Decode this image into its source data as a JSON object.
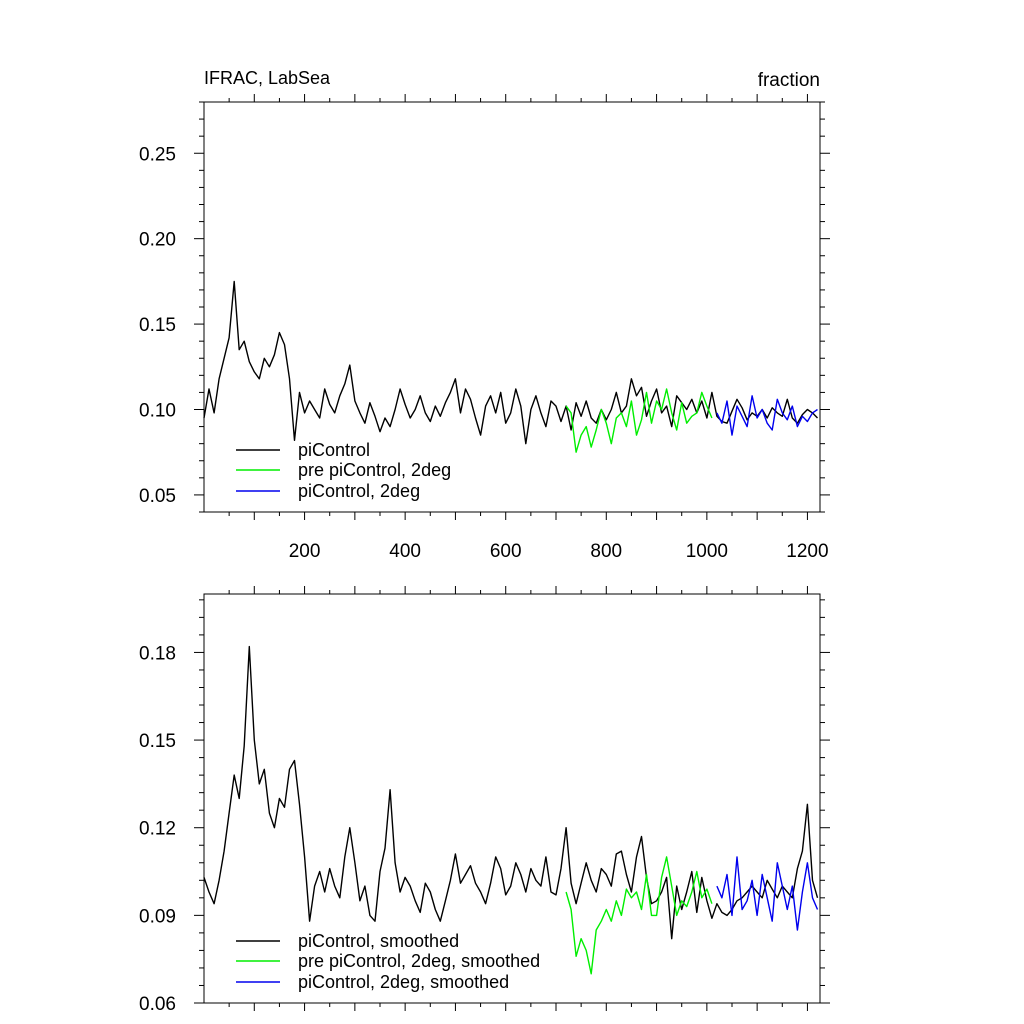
{
  "chart_data": [
    {
      "type": "line",
      "title": "IFRAC, LabSea",
      "right_title": "fraction",
      "xlim": [
        0,
        1225
      ],
      "ylim": [
        0.04,
        0.28
      ],
      "xticks": [
        200,
        400,
        600,
        800,
        1000,
        1200
      ],
      "yticks": [
        0.05,
        0.1,
        0.15,
        0.2,
        0.25
      ],
      "ytick_labels": [
        "0.05",
        "0.10",
        "0.15",
        "0.20",
        "0.25"
      ],
      "legend_placement": "bottom-left",
      "series": [
        {
          "name": "piControl",
          "color": "#000000",
          "x_start": 0,
          "x_step": 10,
          "values": [
            0.095,
            0.112,
            0.098,
            0.118,
            0.13,
            0.142,
            0.175,
            0.135,
            0.14,
            0.128,
            0.122,
            0.118,
            0.13,
            0.125,
            0.132,
            0.145,
            0.138,
            0.118,
            0.082,
            0.11,
            0.098,
            0.105,
            0.1,
            0.095,
            0.112,
            0.103,
            0.098,
            0.108,
            0.115,
            0.126,
            0.105,
            0.098,
            0.092,
            0.104,
            0.096,
            0.087,
            0.095,
            0.09,
            0.1,
            0.112,
            0.103,
            0.095,
            0.1,
            0.108,
            0.098,
            0.093,
            0.102,
            0.096,
            0.104,
            0.11,
            0.118,
            0.098,
            0.112,
            0.106,
            0.095,
            0.085,
            0.102,
            0.108,
            0.098,
            0.11,
            0.092,
            0.098,
            0.112,
            0.102,
            0.08,
            0.1,
            0.108,
            0.098,
            0.09,
            0.105,
            0.102,
            0.093,
            0.102,
            0.088,
            0.104,
            0.096,
            0.105,
            0.095,
            0.092,
            0.1,
            0.094,
            0.1,
            0.11,
            0.098,
            0.102,
            0.118,
            0.108,
            0.113,
            0.096,
            0.105,
            0.112,
            0.098,
            0.102,
            0.09,
            0.108,
            0.104,
            0.1,
            0.106,
            0.098,
            0.105,
            0.095,
            0.11,
            0.096,
            0.093,
            0.092,
            0.099,
            0.106,
            0.101,
            0.094,
            0.098,
            0.096,
            0.1,
            0.095,
            0.101,
            0.098,
            0.096,
            0.106,
            0.095,
            0.092,
            0.097,
            0.1,
            0.098,
            0.095
          ]
        },
        {
          "name": "pre piControl, 2deg",
          "color": "#00ee00",
          "x_start": 720,
          "x_step": 10,
          "values": [
            0.102,
            0.098,
            0.075,
            0.085,
            0.09,
            0.078,
            0.088,
            0.1,
            0.092,
            0.08,
            0.095,
            0.098,
            0.09,
            0.105,
            0.085,
            0.094,
            0.11,
            0.092,
            0.105,
            0.1,
            0.112,
            0.098,
            0.088,
            0.104,
            0.092,
            0.096,
            0.098,
            0.11,
            0.102,
            0.095
          ]
        },
        {
          "name": "piControl, 2deg",
          "color": "#0000ee",
          "x_start": 1020,
          "x_step": 10,
          "values": [
            0.098,
            0.092,
            0.105,
            0.085,
            0.102,
            0.096,
            0.09,
            0.108,
            0.095,
            0.1,
            0.092,
            0.088,
            0.106,
            0.098,
            0.094,
            0.102,
            0.09,
            0.096,
            0.093,
            0.098,
            0.1
          ]
        }
      ]
    },
    {
      "type": "line",
      "xlim": [
        0,
        1225
      ],
      "ylim": [
        0.06,
        0.2
      ],
      "xticks": [
        200,
        400,
        600,
        800,
        1000,
        1200
      ],
      "yticks": [
        0.06,
        0.09,
        0.12,
        0.15,
        0.18
      ],
      "ytick_labels": [
        "0.06",
        "0.09",
        "0.12",
        "0.15",
        "0.18"
      ],
      "legend_placement": "bottom-left",
      "series": [
        {
          "name": "piControl, smoothed",
          "color": "#000000",
          "x_start": 0,
          "x_step": 10,
          "values": [
            0.103,
            0.098,
            0.094,
            0.102,
            0.112,
            0.125,
            0.138,
            0.13,
            0.148,
            0.182,
            0.15,
            0.135,
            0.14,
            0.125,
            0.12,
            0.13,
            0.127,
            0.14,
            0.143,
            0.128,
            0.11,
            0.088,
            0.1,
            0.105,
            0.098,
            0.106,
            0.1,
            0.096,
            0.11,
            0.12,
            0.108,
            0.095,
            0.1,
            0.09,
            0.088,
            0.105,
            0.113,
            0.133,
            0.108,
            0.098,
            0.103,
            0.1,
            0.095,
            0.091,
            0.101,
            0.098,
            0.092,
            0.088,
            0.095,
            0.102,
            0.111,
            0.101,
            0.104,
            0.107,
            0.101,
            0.098,
            0.094,
            0.101,
            0.11,
            0.106,
            0.097,
            0.1,
            0.108,
            0.104,
            0.098,
            0.106,
            0.102,
            0.1,
            0.11,
            0.098,
            0.097,
            0.106,
            0.12,
            0.101,
            0.094,
            0.101,
            0.108,
            0.102,
            0.098,
            0.106,
            0.104,
            0.1,
            0.111,
            0.112,
            0.104,
            0.098,
            0.11,
            0.117,
            0.103,
            0.094,
            0.095,
            0.098,
            0.103,
            0.082,
            0.1,
            0.092,
            0.098,
            0.105,
            0.091,
            0.103,
            0.095,
            0.089,
            0.094,
            0.091,
            0.09,
            0.092,
            0.095,
            0.096,
            0.098,
            0.1,
            0.098,
            0.096,
            0.102,
            0.099,
            0.096,
            0.1,
            0.098,
            0.096,
            0.106,
            0.112,
            0.128,
            0.102,
            0.096
          ]
        },
        {
          "name": "pre piControl, 2deg, smoothed",
          "color": "#00ee00",
          "x_start": 720,
          "x_step": 10,
          "values": [
            0.098,
            0.092,
            0.076,
            0.082,
            0.078,
            0.07,
            0.085,
            0.088,
            0.092,
            0.088,
            0.095,
            0.09,
            0.099,
            0.096,
            0.098,
            0.092,
            0.104,
            0.09,
            0.09,
            0.103,
            0.11,
            0.1,
            0.09,
            0.095,
            0.093,
            0.098,
            0.105,
            0.096,
            0.099,
            0.094
          ]
        },
        {
          "name": "piControl, 2deg, smoothed",
          "color": "#0000ee",
          "x_start": 1020,
          "x_step": 10,
          "values": [
            0.1,
            0.096,
            0.104,
            0.09,
            0.11,
            0.092,
            0.095,
            0.102,
            0.09,
            0.104,
            0.096,
            0.088,
            0.108,
            0.1,
            0.092,
            0.1,
            0.085,
            0.098,
            0.108,
            0.096,
            0.092
          ]
        }
      ]
    }
  ]
}
